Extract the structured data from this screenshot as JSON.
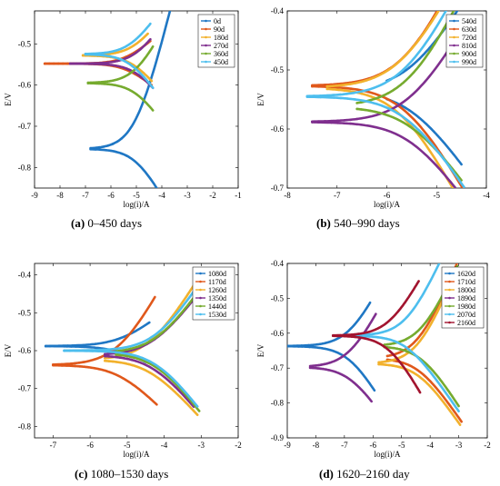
{
  "captions": [
    {
      "letter": "(a)",
      "text": " 0–450 days"
    },
    {
      "letter": "(b)",
      "text": " 540–990 days"
    },
    {
      "letter": "(c)",
      "text": " 1080–1530 days"
    },
    {
      "letter": "(d)",
      "text": " 1620–2160 day"
    }
  ],
  "chart_data": [
    {
      "type": "line",
      "xlabel": "log(i)/A",
      "ylabel": "E/V",
      "xlim": [
        -9,
        -1
      ],
      "ylim": [
        -0.85,
        -0.42
      ],
      "xticks": [
        -9,
        -8,
        -7,
        -6,
        -5,
        -4,
        -3,
        -2,
        -1
      ],
      "yticks": [
        -0.8,
        -0.7,
        -0.6,
        -0.5
      ],
      "legend_position": "top-right",
      "series": [
        {
          "name": "0d",
          "color": "#1f77c4",
          "ecorr": -0.755,
          "icorr": -5.0,
          "ba": 0.25,
          "bc": 0.11,
          "xa": -2.75,
          "xc": -2.1,
          "xn": -6.8
        },
        {
          "name": "90d",
          "color": "#e0581b",
          "ecorr": -0.548,
          "icorr": -5.4,
          "ba": 0.055,
          "bc": 0.05,
          "xa": -4.45,
          "xc": -4.4,
          "xn": -8.6
        },
        {
          "name": "180d",
          "color": "#f2b12c",
          "ecorr": -0.528,
          "icorr": -5.1,
          "ba": 0.08,
          "bc": 0.08,
          "xa": -4.55,
          "xc": -4.4,
          "xn": -7.1
        },
        {
          "name": "270d",
          "color": "#7f2f8e",
          "ecorr": -0.548,
          "icorr": -5.0,
          "ba": 0.09,
          "bc": 0.08,
          "xa": -4.45,
          "xc": -4.35,
          "xn": -7.6
        },
        {
          "name": "360d",
          "color": "#76ab2f",
          "ecorr": -0.595,
          "icorr": -5.0,
          "ba": 0.12,
          "bc": 0.09,
          "xa": -4.35,
          "xc": -4.35,
          "xn": -6.9
        },
        {
          "name": "450d",
          "color": "#4dbeee",
          "ecorr": -0.525,
          "icorr": -5.2,
          "ba": 0.09,
          "bc": 0.09,
          "xa": -4.45,
          "xc": -4.35,
          "xn": -7.0
        }
      ]
    },
    {
      "type": "line",
      "xlabel": "log(i)/A",
      "ylabel": "E/V",
      "xlim": [
        -8,
        -4
      ],
      "ylim": [
        -0.7,
        -0.4
      ],
      "xticks": [
        -8,
        -7,
        -6,
        -5,
        -4
      ],
      "yticks": [
        -0.7,
        -0.6,
        -0.5,
        -0.4
      ],
      "legend_position": "top-right",
      "series": [
        {
          "name": "540d",
          "color": "#1f77c4",
          "ecorr": -0.535,
          "icorr": -5.5,
          "ba": 0.14,
          "bc": 0.12,
          "xa": -4.5,
          "xc": -4.5,
          "xn": -6.0
        },
        {
          "name": "630d",
          "color": "#e0581b",
          "ecorr": -0.527,
          "icorr": -5.6,
          "ba": 0.18,
          "bc": 0.15,
          "xa": -4.55,
          "xc": -4.45,
          "xn": -7.5
        },
        {
          "name": "720d",
          "color": "#f2b12c",
          "ecorr": -0.53,
          "icorr": -5.7,
          "ba": 0.16,
          "bc": 0.16,
          "xa": -4.55,
          "xc": -4.5,
          "xn": -7.2
        },
        {
          "name": "810d",
          "color": "#7f2f8e",
          "ecorr": -0.588,
          "icorr": -5.5,
          "ba": 0.15,
          "bc": 0.12,
          "xa": -4.5,
          "xc": -4.5,
          "xn": -7.5
        },
        {
          "name": "900d",
          "color": "#76ab2f",
          "ecorr": -0.562,
          "icorr": -5.5,
          "ba": 0.18,
          "bc": 0.12,
          "xa": -4.5,
          "xc": -4.5,
          "xn": -6.6
        },
        {
          "name": "990d",
          "color": "#4dbeee",
          "ecorr": -0.545,
          "icorr": -5.6,
          "ba": 0.17,
          "bc": 0.13,
          "xa": -4.5,
          "xc": -4.45,
          "xn": -7.6
        }
      ]
    },
    {
      "type": "line",
      "xlabel": "log(i)/A",
      "ylabel": "E/V",
      "xlim": [
        -7.5,
        -2
      ],
      "ylim": [
        -0.83,
        -0.37
      ],
      "xticks": [
        -7,
        -6,
        -5,
        -4,
        -3,
        -2
      ],
      "yticks": [
        -0.8,
        -0.7,
        -0.6,
        -0.5,
        -0.4
      ],
      "legend_position": "top-right",
      "series": [
        {
          "name": "1080d",
          "color": "#1f77c4",
          "ecorr": -0.588,
          "icorr": -5.1,
          "ba": 0.08,
          "bc": 0.06,
          "xa": -4.4,
          "xc": -4.5,
          "xn": -7.2
        },
        {
          "name": "1170d",
          "color": "#e0581b",
          "ecorr": -0.638,
          "icorr": -5.2,
          "ba": 0.18,
          "bc": 0.1,
          "xa": -4.25,
          "xc": -4.2,
          "xn": -7.0
        },
        {
          "name": "1260d",
          "color": "#f2b12c",
          "ecorr": -0.624,
          "icorr": -4.4,
          "ba": 0.16,
          "bc": 0.11,
          "xa": -3.1,
          "xc": -3.1,
          "xn": -5.6
        },
        {
          "name": "1350d",
          "color": "#7f2f8e",
          "ecorr": -0.612,
          "icorr": -4.3,
          "ba": 0.13,
          "bc": 0.12,
          "xa": -3.25,
          "xc": -3.2,
          "xn": -5.6
        },
        {
          "name": "1440d",
          "color": "#76ab2f",
          "ecorr": -0.606,
          "icorr": -4.2,
          "ba": 0.14,
          "bc": 0.13,
          "xa": -3.1,
          "xc": -3.05,
          "xn": -5.3
        },
        {
          "name": "1530d",
          "color": "#4dbeee",
          "ecorr": -0.6,
          "icorr": -4.2,
          "ba": 0.15,
          "bc": 0.13,
          "xa": -3.2,
          "xc": -3.1,
          "xn": -6.7
        }
      ]
    },
    {
      "type": "line",
      "xlabel": "log(i)/A",
      "ylabel": "E/V",
      "xlim": [
        -9,
        -2
      ],
      "ylim": [
        -0.9,
        -0.4
      ],
      "xticks": [
        -9,
        -8,
        -7,
        -6,
        -5,
        -4,
        -3,
        -2
      ],
      "yticks": [
        -0.9,
        -0.8,
        -0.7,
        -0.6,
        -0.5,
        -0.4
      ],
      "legend_position": "top-right",
      "series": [
        {
          "name": "1620d",
          "color": "#1f77c4",
          "ecorr": -0.637,
          "icorr": -6.8,
          "ba": 0.16,
          "bc": 0.14,
          "xa": -6.1,
          "xc": -5.95,
          "xn": -9.0
        },
        {
          "name": "1710d",
          "color": "#e0581b",
          "ecorr": -0.672,
          "icorr": -4.4,
          "ba": 0.2,
          "bc": 0.12,
          "xa": -3.0,
          "xc": -2.9,
          "xn": -5.5
        },
        {
          "name": "1800d",
          "color": "#f2b12c",
          "ecorr": -0.687,
          "icorr": -4.4,
          "ba": 0.2,
          "bc": 0.12,
          "xa": -3.05,
          "xc": -2.95,
          "xn": -5.8
        },
        {
          "name": "1890d",
          "color": "#7f2f8e",
          "ecorr": -0.697,
          "icorr": -6.8,
          "ba": 0.16,
          "bc": 0.12,
          "xa": -5.9,
          "xc": -6.05,
          "xn": -8.2
        },
        {
          "name": "1980d",
          "color": "#76ab2f",
          "ecorr": -0.637,
          "icorr": -4.3,
          "ba": 0.18,
          "bc": 0.13,
          "xa": -3.05,
          "xc": -3.0,
          "xn": -5.6
        },
        {
          "name": "2070d",
          "color": "#4dbeee",
          "ecorr": -0.607,
          "icorr": -4.8,
          "ba": 0.18,
          "bc": 0.12,
          "xa": -3.0,
          "xc": -3.0,
          "xn": -6.6
        },
        {
          "name": "2160d",
          "color": "#a2142f",
          "ecorr": -0.607,
          "icorr": -5.4,
          "ba": 0.15,
          "bc": 0.15,
          "xa": -4.4,
          "xc": -4.35,
          "xn": -7.4
        }
      ]
    }
  ]
}
